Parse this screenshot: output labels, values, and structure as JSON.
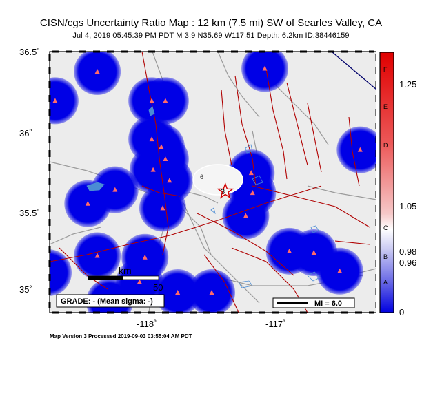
{
  "title": "CISN/cgs Uncertainty Ratio Map : 12 km (7.5 mi) SW of Searles Valley, CA",
  "subtitle": "Jul  4, 2019 05:45:39 PM PDT   M 3.9   N35.69 W117.51   Depth: 6.2km   ID:38446159",
  "lat_labels": [
    "36.5˚",
    "36˚",
    "35.5˚",
    "35˚"
  ],
  "lon_labels": [
    "-118˚",
    "-117˚"
  ],
  "scalebar": {
    "unit": "km",
    "value": "50"
  },
  "grade_text": "GRADE: - (Mean sigma: -)",
  "mi_legend": "MI = 6.0",
  "contour_label": "3",
  "footer": "Map Version 3 Processed 2019-09-03 03:55:04 AM PDT",
  "colorbar": {
    "letters": [
      "F",
      "E",
      "D",
      "C",
      "B",
      "A"
    ],
    "ticks": [
      "1.25",
      "1.05",
      "0.98",
      "0.96",
      "0"
    ]
  },
  "colors": {
    "land": "#ececec",
    "uncertainty": "#0000e6",
    "fault": "#b00000",
    "road": "#9a9a9a",
    "water": "#4a8cd4",
    "station": "#ff6a6a",
    "epicenter": "#d00000"
  },
  "map_extent": {
    "lon_min": -118.8,
    "lon_max": -116.4,
    "lat_min": 34.9,
    "lat_max": 36.6
  },
  "epicenter": {
    "lat": 35.69,
    "lon": -117.51
  },
  "stations": [
    {
      "lat": 36.47,
      "lon": -118.45
    },
    {
      "lat": 36.49,
      "lon": -117.22
    },
    {
      "lat": 36.28,
      "lon": -118.76
    },
    {
      "lat": 36.28,
      "lon": -118.05
    },
    {
      "lat": 36.28,
      "lon": -117.95
    },
    {
      "lat": 36.03,
      "lon": -118.05
    },
    {
      "lat": 35.98,
      "lon": -117.98
    },
    {
      "lat": 35.9,
      "lon": -117.95
    },
    {
      "lat": 35.81,
      "lon": -117.32
    },
    {
      "lat": 35.68,
      "lon": -117.31
    },
    {
      "lat": 35.83,
      "lon": -118.04
    },
    {
      "lat": 35.76,
      "lon": -117.92
    },
    {
      "lat": 35.7,
      "lon": -118.32
    },
    {
      "lat": 35.61,
      "lon": -118.52
    },
    {
      "lat": 35.96,
      "lon": -116.52
    },
    {
      "lat": 35.53,
      "lon": -117.36
    },
    {
      "lat": 35.58,
      "lon": -117.97
    },
    {
      "lat": 35.27,
      "lon": -118.45
    },
    {
      "lat": 35.16,
      "lon": -118.81
    },
    {
      "lat": 35.1,
      "lon": -118.14
    },
    {
      "lat": 35.03,
      "lon": -117.86
    },
    {
      "lat": 35.03,
      "lon": -117.61
    },
    {
      "lat": 35.3,
      "lon": -117.04
    },
    {
      "lat": 35.29,
      "lon": -116.86
    },
    {
      "lat": 35.17,
      "lon": -116.67
    },
    {
      "lat": 34.97,
      "lon": -118.36
    },
    {
      "lat": 35.26,
      "lon": -118.1
    }
  ]
}
